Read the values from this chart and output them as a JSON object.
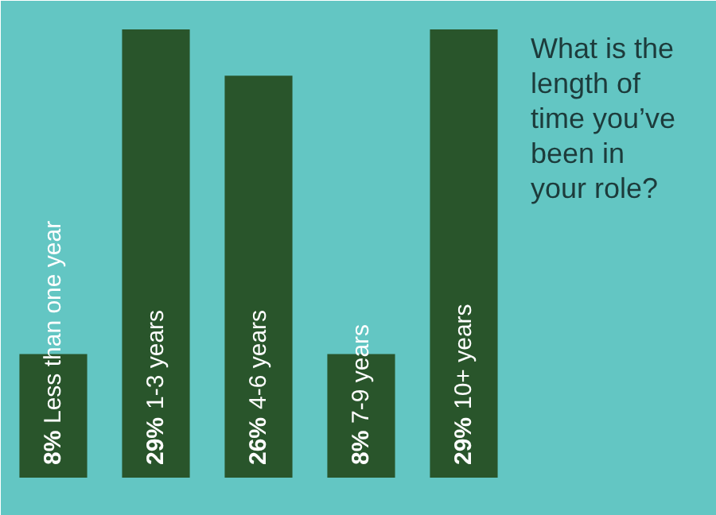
{
  "chart_data": {
    "type": "bar",
    "title": "What is the length of time you’ve been in your role?",
    "categories": [
      "Less than one year",
      "1-3 years",
      "4-6 years",
      "7-9 years",
      "10+ years"
    ],
    "values": [
      8,
      29,
      26,
      8,
      29
    ],
    "value_labels": [
      "8%",
      "29%",
      "26%",
      "8%",
      "29%"
    ],
    "color": "#29552b",
    "grid": false
  }
}
